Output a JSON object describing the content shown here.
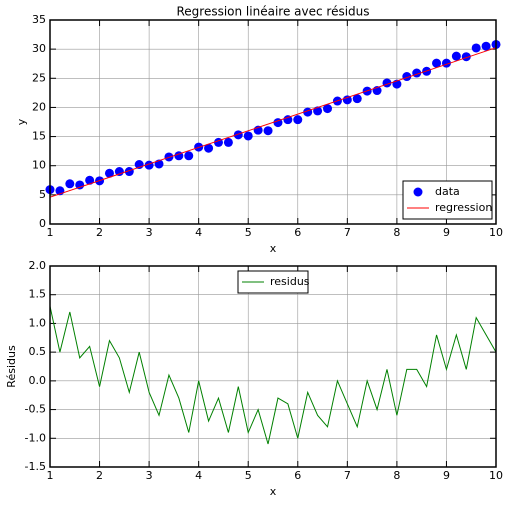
{
  "chart_data": [
    {
      "type": "scatter",
      "title": "Regression linéaire avec résidus",
      "xlabel": "x",
      "ylabel": "y",
      "xlim": [
        1,
        10
      ],
      "ylim": [
        0,
        35
      ],
      "xticks": [
        1,
        2,
        3,
        4,
        5,
        6,
        7,
        8,
        9,
        10
      ],
      "yticks": [
        0,
        5,
        10,
        15,
        20,
        25,
        30,
        35
      ],
      "grid": true,
      "legend": "lower right",
      "series": [
        {
          "name": "data",
          "color": "#0000ff",
          "style": "marker",
          "x": [
            1.0,
            1.2,
            1.4,
            1.6,
            1.8,
            2.0,
            2.2,
            2.4,
            2.6,
            2.8,
            3.0,
            3.2,
            3.4,
            3.6,
            3.8,
            4.0,
            4.2,
            4.4,
            4.6,
            4.8,
            5.0,
            5.2,
            5.4,
            5.6,
            5.8,
            6.0,
            6.2,
            6.4,
            6.6,
            6.8,
            7.0,
            7.2,
            7.4,
            7.6,
            7.8,
            8.0,
            8.2,
            8.4,
            8.6,
            8.8,
            9.0,
            9.2,
            9.4,
            9.6,
            9.8,
            10.0
          ],
          "values": [
            5.9,
            5.7,
            6.9,
            6.7,
            7.5,
            7.4,
            8.7,
            9.0,
            9.0,
            10.2,
            10.1,
            10.3,
            11.5,
            11.7,
            11.7,
            13.2,
            13.0,
            14.0,
            14.0,
            15.3,
            15.1,
            16.1,
            16.0,
            17.4,
            17.9,
            17.9,
            19.2,
            19.4,
            19.8,
            21.1,
            21.3,
            21.5,
            22.8,
            22.9,
            24.2,
            24.0,
            25.3,
            25.9,
            26.2,
            27.6,
            27.6,
            28.8,
            28.7,
            30.2,
            30.5,
            30.8
          ]
        },
        {
          "name": "regression",
          "color": "#ff0000",
          "style": "line",
          "x": [
            1,
            10
          ],
          "values": [
            4.6,
            30.25
          ]
        }
      ]
    },
    {
      "type": "line",
      "xlabel": "x",
      "ylabel": "Résidus",
      "xlim": [
        1,
        10
      ],
      "ylim": [
        -1.5,
        2
      ],
      "xticks": [
        1,
        2,
        3,
        4,
        5,
        6,
        7,
        8,
        9,
        10
      ],
      "yticks": [
        -1.5,
        {
          "value": -1,
          "label": "-1.0"
        },
        -0.5,
        {
          "value": 0,
          "label": "0.0"
        },
        0.5,
        {
          "value": 1,
          "label": "1.0"
        },
        1.5,
        {
          "value": 2,
          "label": "2.0"
        }
      ],
      "grid": true,
      "legend": "upper center",
      "series": [
        {
          "name": "residus",
          "color": "#008000",
          "style": "line",
          "x": [
            1.0,
            1.2,
            1.4,
            1.6,
            1.8,
            2.0,
            2.2,
            2.4,
            2.6,
            2.8,
            3.0,
            3.2,
            3.4,
            3.6,
            3.8,
            4.0,
            4.2,
            4.4,
            4.6,
            4.8,
            5.0,
            5.2,
            5.4,
            5.6,
            5.8,
            6.0,
            6.2,
            6.4,
            6.6,
            6.8,
            7.0,
            7.2,
            7.4,
            7.6,
            7.8,
            8.0,
            8.2,
            8.4,
            8.6,
            8.8,
            9.0,
            9.2,
            9.4,
            9.6,
            9.8,
            10.0
          ],
          "values": [
            1.3,
            0.5,
            1.2,
            0.4,
            0.6,
            -0.1,
            0.7,
            0.4,
            -0.2,
            0.5,
            -0.2,
            -0.6,
            0.1,
            -0.3,
            -0.9,
            0,
            -0.7,
            -0.3,
            -0.9,
            -0.1,
            -0.9,
            -0.5,
            -1.1,
            -0.3,
            -0.4,
            -1.0,
            -0.2,
            -0.6,
            -0.8,
            0,
            -0.4,
            -0.8,
            0,
            -0.5,
            0.2,
            -0.6,
            0.2,
            0.2,
            -0.1,
            0.8,
            0.2,
            0.8,
            0.2,
            1.1,
            0.8,
            0.5
          ]
        }
      ]
    }
  ]
}
